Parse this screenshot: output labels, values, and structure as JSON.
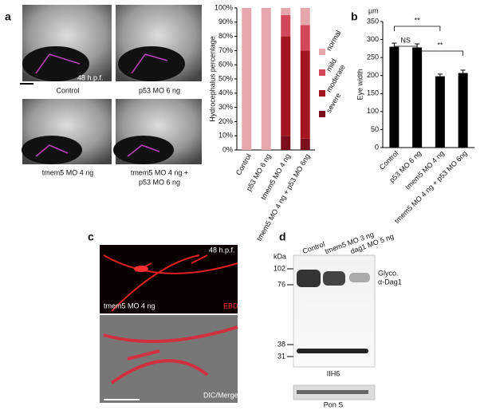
{
  "panel_labels": [
    "a",
    "b",
    "c",
    "d"
  ],
  "panel_a": {
    "stage": "48 h.p.f.",
    "image_labels": [
      [
        "Control"
      ],
      [
        "p53 MO 6 ng"
      ],
      [
        "tmem5 MO 4 ng"
      ],
      [
        "tmem5 MO 4 ng +",
        "p53 MO 6 ng"
      ]
    ]
  },
  "chart_data": [
    {
      "type": "stacked-bar",
      "ylabel": "Hydrocephalus percentage",
      "categories": [
        "Control",
        "p53 MO 6 ng",
        "tmem5 MO 4 ng",
        "tmem5 MO 4 ng + p53 MO 6ng"
      ],
      "series": [
        {
          "name": "severe",
          "color": "#7a0e1a",
          "values": [
            0,
            0,
            10,
            8
          ]
        },
        {
          "name": "moderate",
          "color": "#a3151f",
          "values": [
            0,
            0,
            70,
            62
          ]
        },
        {
          "name": "mild",
          "color": "#d2485a",
          "values": [
            0,
            0,
            15,
            18
          ]
        },
        {
          "name": "normal",
          "color": "#e6a7ac",
          "values": [
            100,
            100,
            5,
            12
          ]
        }
      ],
      "ylim": [
        0,
        100
      ],
      "yticks": [
        {
          "value": 0,
          "label": "0%"
        },
        {
          "value": 10,
          "label": "10%"
        },
        {
          "value": 20,
          "label": "20%"
        },
        {
          "value": 30,
          "label": "30%"
        },
        {
          "value": 40,
          "label": "40%"
        },
        {
          "value": 50,
          "label": "50%"
        },
        {
          "value": 60,
          "label": "60%"
        },
        {
          "value": 70,
          "label": "70%"
        },
        {
          "value": 80,
          "label": "80%"
        },
        {
          "value": 90,
          "label": "90%"
        },
        {
          "value": 100,
          "label": "100%"
        }
      ]
    },
    {
      "type": "bar",
      "ylabel": "Eye width",
      "unit": "µm",
      "categories": [
        "Control",
        "p53 MO 6 ng",
        "tmem5 MO 4 ng",
        "tmem5 MO 4 ng + p53 MO 6ng"
      ],
      "values": [
        280,
        278,
        198,
        207
      ],
      "errors": [
        10,
        10,
        6,
        8
      ],
      "color": "#000000",
      "ylim": [
        0,
        350
      ],
      "yticks": [
        0,
        50,
        100,
        150,
        200,
        250,
        300,
        350
      ],
      "annotations": [
        "**",
        "NS",
        "**"
      ]
    }
  ],
  "panel_c": {
    "stage": "48 h.p.f.",
    "condition": "tmem5 MO 4 ng",
    "channel": "EBD",
    "merge": "DIC/Merge"
  },
  "panel_d": {
    "unit": "kDa",
    "lanes": [
      "Control",
      "tmem5 MO 3 ng",
      "dag1 MO 5 ng"
    ],
    "markers": [
      102,
      76,
      38,
      31
    ],
    "band_label": [
      "Glyco.",
      "α-Dag1"
    ],
    "blot_label": "IIH6",
    "loading_label": "Pon S"
  }
}
